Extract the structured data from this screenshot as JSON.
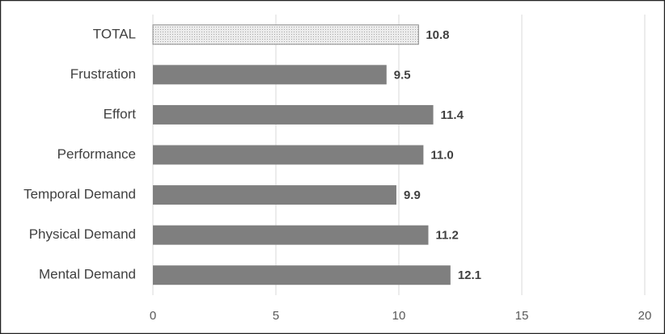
{
  "chart_data": {
    "type": "hbar",
    "categories": [
      "TOTAL",
      "Frustration",
      "Effort",
      "Performance",
      "Temporal Demand",
      "Physical Demand",
      "Mental Demand"
    ],
    "values": [
      10.8,
      9.5,
      11.4,
      11.0,
      9.9,
      11.2,
      12.1
    ],
    "value_labels": [
      "10.8",
      "9.5",
      "11.4",
      "11.0",
      "9.9",
      "11.2",
      "12.1"
    ],
    "colors": [
      "#dcdcdc",
      "#7f7f7f",
      "#7f7f7f",
      "#7f7f7f",
      "#7f7f7f",
      "#7f7f7f",
      "#7f7f7f"
    ],
    "xlim": [
      0,
      20
    ],
    "xticks": [
      0,
      5,
      10,
      15,
      20
    ],
    "grid": true
  }
}
